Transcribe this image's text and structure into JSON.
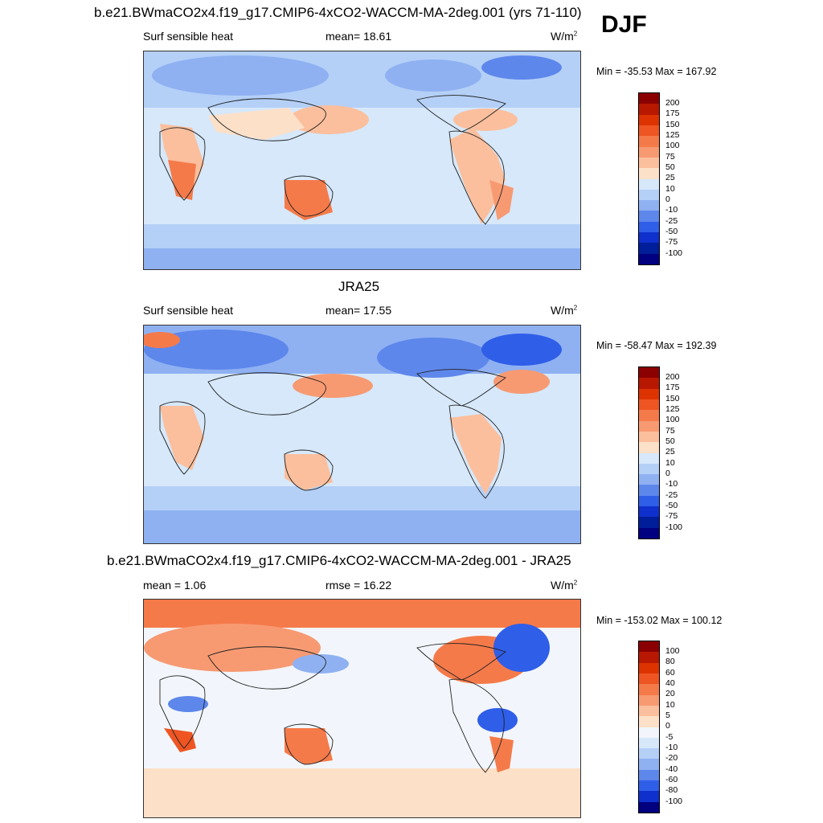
{
  "season": "DJF",
  "units_base": "W/m",
  "units_exp": "2",
  "panels": [
    {
      "title": "b.e21.BWmaCO2x4.f19_g17.CMIP6-4xCO2-WACCM-MA-2deg.001 (yrs 71-110)",
      "left_label": "Surf sensible heat",
      "stat_label": "mean=",
      "stat_value": "18.61",
      "minmax": "Min = -35.53 Max = 167.92"
    },
    {
      "title": "JRA25",
      "left_label": "Surf sensible heat",
      "stat_label": "mean=",
      "stat_value": "17.55",
      "minmax": "Min = -58.47 Max = 192.39"
    },
    {
      "title": "b.e21.BWmaCO2x4.f19_g17.CMIP6-4xCO2-WACCM-MA-2deg.001 - JRA25",
      "left_label": "mean =   1.06",
      "stat_label": "rmse =",
      "stat_value": "16.22",
      "minmax": "Min = -153.02 Max = 100.12"
    }
  ],
  "colorbar_abs": {
    "labels": [
      "200",
      "175",
      "150",
      "125",
      "100",
      "75",
      "50",
      "25",
      "10",
      "0",
      "-10",
      "-25",
      "-50",
      "-75",
      "-100"
    ],
    "colors": [
      "#8b0000",
      "#b81800",
      "#dd3300",
      "#ee5522",
      "#f57a4a",
      "#f79a72",
      "#fbbf9d",
      "#fde0c8",
      "#d6e8fa",
      "#b4d0f7",
      "#8fb1f2",
      "#5e87ec",
      "#2f5ee8",
      "#0f30cc",
      "#001e99",
      "#000080"
    ]
  },
  "colorbar_diff": {
    "labels": [
      "100",
      "80",
      "60",
      "40",
      "20",
      "10",
      "5",
      "0",
      "-5",
      "-10",
      "-20",
      "-40",
      "-60",
      "-80",
      "-100"
    ],
    "colors": [
      "#8b0000",
      "#b81800",
      "#dd3300",
      "#ee5522",
      "#f57a4a",
      "#f79a72",
      "#fbbf9d",
      "#fde0c8",
      "#f2f6fc",
      "#d6e8fa",
      "#b4d0f7",
      "#8fb1f2",
      "#5e87ec",
      "#2f5ee8",
      "#0f30cc",
      "#000080"
    ]
  }
}
